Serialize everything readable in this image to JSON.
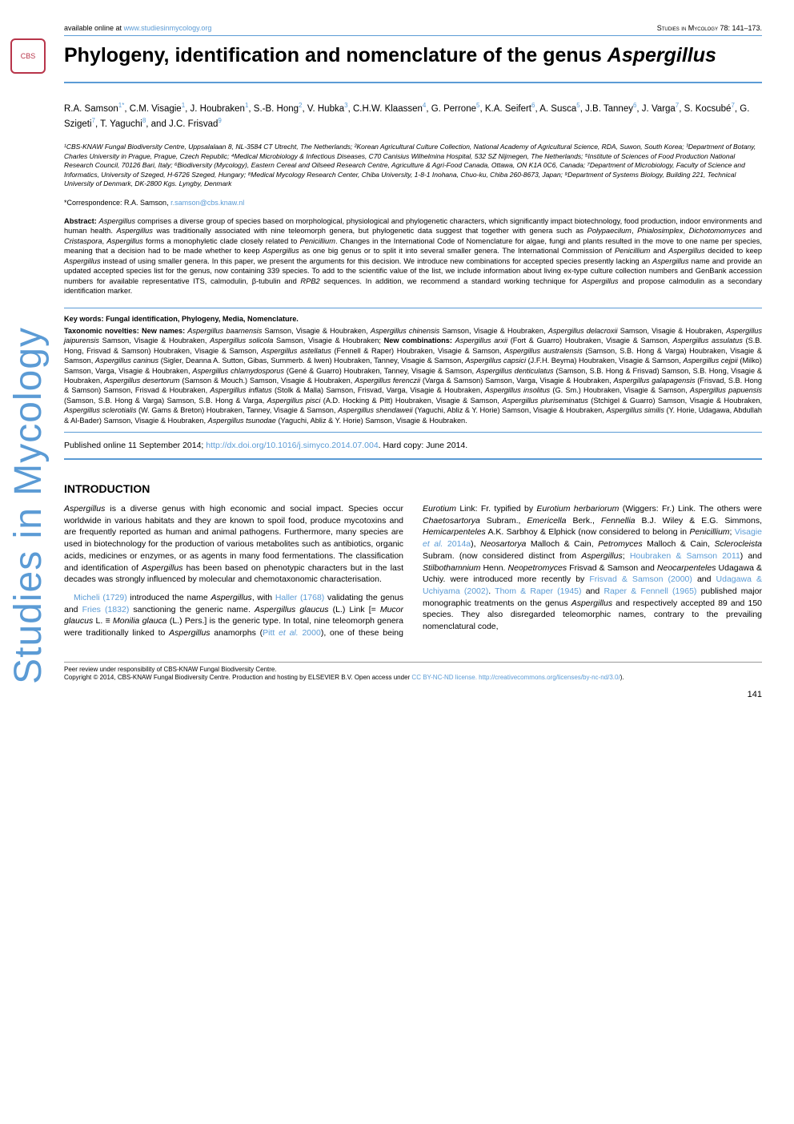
{
  "header": {
    "available_text": "available online at ",
    "url": "www.studiesinmycology.org",
    "journal": "Studies in Mycology 78: 141–173."
  },
  "sidebar": {
    "logo": "CBS",
    "vertical": "Studies in Mycology"
  },
  "title": {
    "plain": "Phylogeny, identification and nomenclature of the genus ",
    "genus": "Aspergillus"
  },
  "authors_html": "R.A. Samson<sup>1*</sup>, C.M. Visagie<sup>1</sup>, J. Houbraken<sup>1</sup>, S.-B. Hong<sup>2</sup>, V. Hubka<sup>3</sup>, C.H.W. Klaassen<sup>4</sup>, G. Perrone<sup>5</sup>, K.A. Seifert<sup>6</sup>, A. Susca<sup>5</sup>, J.B. Tanney<sup>6</sup>, J. Varga<sup>7</sup>, S. Kocsubé<sup>7</sup>, G. Szigeti<sup>7</sup>, T. Yaguchi<sup>8</sup>, and J.C. Frisvad<sup>9</sup>",
  "affiliations": "¹CBS-KNAW Fungal Biodiversity Centre, Uppsalalaan 8, NL-3584 CT Utrecht, The Netherlands; ²Korean Agricultural Culture Collection, National Academy of Agricultural Science, RDA, Suwon, South Korea; ³Department of Botany, Charles University in Prague, Prague, Czech Republic; ⁴Medical Microbiology & Infectious Diseases, C70 Canisius Wilhelmina Hospital, 532 SZ Nijmegen, The Netherlands; ⁵Institute of Sciences of Food Production National Research Council, 70126 Bari, Italy; ⁶Biodiversity (Mycology), Eastern Cereal and Oilseed Research Centre, Agriculture & Agri-Food Canada, Ottawa, ON K1A 0C6, Canada; ⁷Department of Microbiology, Faculty of Science and Informatics, University of Szeged, H-6726 Szeged, Hungary; ⁸Medical Mycology Research Center, Chiba University, 1-8-1 Inohana, Chuo-ku, Chiba 260-8673, Japan; ⁹Department of Systems Biology, Building 221, Technical University of Denmark, DK-2800 Kgs. Lyngby, Denmark",
  "correspondence": {
    "label": "*Correspondence: R.A. Samson, ",
    "email": "r.samson@cbs.knaw.nl"
  },
  "abstract": "Abstract: Aspergillus comprises a diverse group of species based on morphological, physiological and phylogenetic characters, which significantly impact biotechnology, food production, indoor environments and human health. Aspergillus was traditionally associated with nine teleomorph genera, but phylogenetic data suggest that together with genera such as Polypaecilum, Phialosimplex, Dichotomomyces and Cristaspora, Aspergillus forms a monophyletic clade closely related to Penicillium. Changes in the International Code of Nomenclature for algae, fungi and plants resulted in the move to one name per species, meaning that a decision had to be made whether to keep Aspergillus as one big genus or to split it into several smaller genera. The International Commission of Penicillium and Aspergillus decided to keep Aspergillus instead of using smaller genera. In this paper, we present the arguments for this decision. We introduce new combinations for accepted species presently lacking an Aspergillus name and provide an updated accepted species list for the genus, now containing 339 species. To add to the scientific value of the list, we include information about living ex-type culture collection numbers and GenBank accession numbers for available representative ITS, calmodulin, β-tubulin and RPB2 sequences. In addition, we recommend a standard working technique for Aspergillus and propose calmodulin as a secondary identification marker.",
  "keywords": "Key words: Fungal identification, Phylogeny, Media, Nomenclature.",
  "novelties": "Taxonomic novelties: New names: Aspergillus baarnensis Samson, Visagie & Houbraken, Aspergillus chinensis Samson, Visagie & Houbraken, Aspergillus delacroxii Samson, Visagie & Houbraken, Aspergillus jaipurensis Samson, Visagie & Houbraken, Aspergillus solicola Samson, Visagie & Houbraken; New combinations: Aspergillus arxii (Fort & Guarro) Houbraken, Visagie & Samson, Aspergillus assulatus (S.B. Hong, Frisvad & Samson) Houbraken, Visagie & Samson, Aspergillus astellatus (Fennell & Raper) Houbraken, Visagie & Samson, Aspergillus australensis (Samson, S.B. Hong & Varga) Houbraken, Visagie & Samson, Aspergillus caninus (Sigler, Deanna A. Sutton, Gibas, Summerb. & Iwen) Houbraken, Tanney, Visagie & Samson, Aspergillus capsici (J.F.H. Beyma) Houbraken, Visagie & Samson, Aspergillus cejpii (Milko) Samson, Varga, Visagie & Houbraken, Aspergillus chlamydosporus (Gené & Guarro) Houbraken, Tanney, Visagie & Samson, Aspergillus denticulatus (Samson, S.B. Hong & Frisvad) Samson, S.B. Hong, Visagie & Houbraken, Aspergillus desertorum (Samson & Mouch.) Samson, Visagie & Houbraken, Aspergillus ferenczii (Varga & Samson) Samson, Varga, Visagie & Houbraken, Aspergillus galapagensis (Frisvad, S.B. Hong & Samson) Samson, Frisvad & Houbraken, Aspergillus inflatus (Stolk & Malla) Samson, Frisvad, Varga, Visagie & Houbraken, Aspergillus insolitus (G. Sm.) Houbraken, Visagie & Samson, Aspergillus papuensis (Samson, S.B. Hong & Varga) Samson, S.B. Hong & Varga, Aspergillus pisci (A.D. Hocking & Pitt) Houbraken, Visagie & Samson, Aspergillus pluriseminatus (Stchigel & Guarro) Samson, Visagie & Houbraken, Aspergillus sclerotialis (W. Gams & Breton) Houbraken, Tanney, Visagie & Samson, Aspergillus shendaweii (Yaguchi, Abliz & Y. Horie) Samson, Visagie & Houbraken, Aspergillus similis (Y. Horie, Udagawa, Abdullah & Al-Bader) Samson, Visagie & Houbraken, Aspergillus tsunodae (Yaguchi, Abliz & Y. Horie) Samson, Visagie & Houbraken.",
  "pubinfo": {
    "pre": "Published online 11 September 2014; ",
    "doi": "http://dx.doi.org/10.1016/j.simyco.2014.07.004",
    "post": ". Hard copy: June 2014."
  },
  "section": "INTRODUCTION",
  "body": {
    "p1_html": "<span class=\"genus\">Aspergillus</span> is a diverse genus with high economic and social impact. Species occur worldwide in various habitats and they are known to spoil food, produce mycotoxins and are frequently reported as human and animal pathogens. Furthermore, many species are used in biotechnology for the production of various metabolites such as antibiotics, organic acids, medicines or enzymes, or as agents in many food fermentations. The classification and identification of <span class=\"genus\">Aspergillus</span> has been based on phenotypic characters but in the last decades was strongly influenced by molecular and chemotaxonomic characterisation.",
    "p2_html": "<span class=\"ref\">Micheli (1729)</span> introduced the name <span class=\"genus\">Aspergillus</span>, with <span class=\"ref\">Haller (1768)</span> validating the genus and <span class=\"ref\">Fries (1832)</span> sanctioning the generic name. <span class=\"genus\">Aspergillus glaucus</span> (L.) Link [= <span class=\"genus\">Mucor glaucus</span> L. ≡ <span class=\"genus\">Monilia glauca</span> (L.) Pers.] is the generic type. In total, nine teleomorph genera were traditionally linked to <span class=\"genus\">Aspergillus</span> anamorphs (<span class=\"ref\">Pitt <i>et al.</i> 2000</span>), one of these being <span class=\"genus\">Eurotium</span> Link: Fr. typified by <span class=\"genus\">Eurotium herbariorum</span> (Wiggers: Fr.) Link. The others were <span class=\"genus\">Chaetosartorya</span> Subram., <span class=\"genus\">Emericella</span> Berk., <span class=\"genus\">Fennellia</span> B.J. Wiley & E.G. Simmons, <span class=\"genus\">Hemicarpenteles</span> A.K. Sarbhoy & Elphick (now considered to belong in <span class=\"genus\">Penicillium</span>; <span class=\"ref\">Visagie <i>et al.</i> 2014a</span>), <span class=\"genus\">Neosartorya</span> Malloch & Cain, <span class=\"genus\">Petromyces</span> Malloch & Cain, <span class=\"genus\">Sclerocleista</span> Subram. (now considered distinct from <span class=\"genus\">Aspergillus</span>; <span class=\"ref\">Houbraken & Samson 2011</span>) and <span class=\"genus\">Stilbothamnium</span> Henn. <span class=\"genus\">Neopetromyces</span> Frisvad & Samson and <span class=\"genus\">Neocarpenteles</span> Udagawa & Uchiy. were introduced more recently by <span class=\"ref\">Frisvad & Samson (2000)</span> and <span class=\"ref\">Udagawa & Uchiyama (2002)</span>. <span class=\"ref\">Thom & Raper (1945)</span> and <span class=\"ref\">Raper & Fennell (1965)</span> published major monographic treatments on the genus <span class=\"genus\">Aspergillus</span> and respectively accepted 89 and 150 species. They also disregarded teleomorphic names, contrary to the prevailing nomenclatural code,"
  },
  "footer": {
    "peer": "Peer review under responsibility of CBS-KNAW Fungal Biodiversity Centre.",
    "copyright_pre": "Copyright © 2014, CBS-KNAW Fungal Biodiversity Centre. Production and hosting by ELSEVIER B.V. Open access under ",
    "license": "CC BY-NC-ND license.",
    "license_url": "http://creativecommons.org/licenses/by-nc-nd/3.0/",
    "close_paren": ")."
  },
  "pagenum": "141",
  "colors": {
    "accent": "#5b9bd5",
    "logo_border": "#b8354a",
    "text": "#000000",
    "bg": "#ffffff"
  }
}
